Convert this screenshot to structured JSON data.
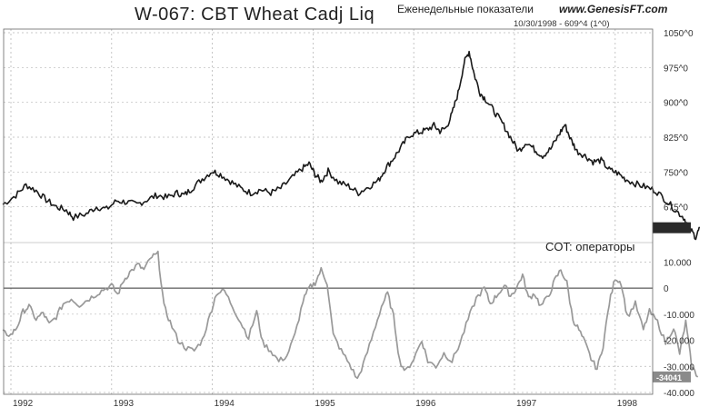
{
  "title": "W-067: CBT Wheat Cadj Liq",
  "subtitle_ru": "Еженедельные показатели",
  "website": "www.GenesisFT.com",
  "date_info": "10/30/1998 - 609^4 (1^0)",
  "colors": {
    "price_line": "#1a1a1a",
    "cot_line": "#999999",
    "grid": "#b8b8b8",
    "zero_line": "#333333",
    "badge_bg": "#2a2a2a",
    "badge_bg2": "#8a8a8a"
  },
  "chart_data": [
    {
      "panel": "price",
      "type": "line",
      "title": "W-067: CBT Wheat Cadj Liq",
      "x": [
        "1992",
        "1993",
        "1994",
        "1995",
        "1996",
        "1997",
        "1998"
      ],
      "ylim": [
        600,
        1050
      ],
      "y_ticks": [
        {
          "v": 1050,
          "label": "1050^0"
        },
        {
          "v": 975,
          "label": "975^0"
        },
        {
          "v": 900,
          "label": "900^0"
        },
        {
          "v": 825,
          "label": "825^0"
        },
        {
          "v": 750,
          "label": "750^0"
        },
        {
          "v": 675,
          "label": "675^0"
        }
      ],
      "series": [
        {
          "values": [
            [
              1991.92,
              680
            ],
            [
              1992.05,
              700
            ],
            [
              1992.15,
              722
            ],
            [
              1992.25,
              710
            ],
            [
              1992.35,
              690
            ],
            [
              1992.45,
              675
            ],
            [
              1992.55,
              668
            ],
            [
              1992.62,
              652
            ],
            [
              1992.75,
              660
            ],
            [
              1992.85,
              675
            ],
            [
              1992.95,
              670
            ],
            [
              1993.05,
              688
            ],
            [
              1993.15,
              685
            ],
            [
              1993.25,
              680
            ],
            [
              1993.35,
              690
            ],
            [
              1993.45,
              700
            ],
            [
              1993.55,
              695
            ],
            [
              1993.65,
              705
            ],
            [
              1993.72,
              700
            ],
            [
              1993.8,
              715
            ],
            [
              1993.9,
              735
            ],
            [
              1994.0,
              752
            ],
            [
              1994.08,
              745
            ],
            [
              1994.18,
              730
            ],
            [
              1994.28,
              715
            ],
            [
              1994.38,
              705
            ],
            [
              1994.48,
              712
            ],
            [
              1994.58,
              705
            ],
            [
              1994.68,
              715
            ],
            [
              1994.78,
              735
            ],
            [
              1994.88,
              755
            ],
            [
              1994.96,
              768
            ],
            [
              1995.02,
              745
            ],
            [
              1995.08,
              730
            ],
            [
              1995.15,
              752
            ],
            [
              1995.25,
              728
            ],
            [
              1995.35,
              720
            ],
            [
              1995.45,
              705
            ],
            [
              1995.55,
              718
            ],
            [
              1995.65,
              732
            ],
            [
              1995.72,
              758
            ],
            [
              1995.8,
              780
            ],
            [
              1995.88,
              805
            ],
            [
              1995.96,
              830
            ],
            [
              1996.05,
              835
            ],
            [
              1996.12,
              840
            ],
            [
              1996.2,
              850
            ],
            [
              1996.26,
              838
            ],
            [
              1996.32,
              845
            ],
            [
              1996.38,
              875
            ],
            [
              1996.44,
              920
            ],
            [
              1996.5,
              985
            ],
            [
              1996.55,
              1010
            ],
            [
              1996.6,
              960
            ],
            [
              1996.66,
              920
            ],
            [
              1996.72,
              905
            ],
            [
              1996.8,
              880
            ],
            [
              1996.88,
              855
            ],
            [
              1996.96,
              825
            ],
            [
              1997.04,
              795
            ],
            [
              1997.12,
              815
            ],
            [
              1997.2,
              798
            ],
            [
              1997.28,
              785
            ],
            [
              1997.36,
              800
            ],
            [
              1997.44,
              830
            ],
            [
              1997.5,
              852
            ],
            [
              1997.56,
              820
            ],
            [
              1997.62,
              795
            ],
            [
              1997.7,
              785
            ],
            [
              1997.78,
              772
            ],
            [
              1997.86,
              775
            ],
            [
              1997.94,
              755
            ],
            [
              1998.02,
              748
            ],
            [
              1998.1,
              735
            ],
            [
              1998.2,
              725
            ],
            [
              1998.3,
              718
            ],
            [
              1998.4,
              710
            ],
            [
              1998.5,
              690
            ],
            [
              1998.6,
              668
            ],
            [
              1998.68,
              652
            ],
            [
              1998.74,
              628
            ],
            [
              1998.8,
              610
            ],
            [
              1998.84,
              630
            ]
          ]
        }
      ]
    },
    {
      "panel": "cot",
      "type": "line",
      "title": "COT: операторы",
      "x": [
        "1992",
        "1993",
        "1994",
        "1995",
        "1996",
        "1997",
        "1998"
      ],
      "ylim": [
        -40000,
        15000
      ],
      "y_ticks": [
        {
          "v": 10000,
          "label": "10.000"
        },
        {
          "v": 0,
          "label": "0"
        },
        {
          "v": -10000,
          "label": "-10.000"
        },
        {
          "v": -20000,
          "label": "-20.000"
        },
        {
          "v": -30000,
          "label": "-30.000"
        },
        {
          "v": -40000,
          "label": "-40.000"
        }
      ],
      "zero_line": 0,
      "last_value": "-34041",
      "series": [
        {
          "values": [
            [
              1991.92,
              -17000
            ],
            [
              1992.0,
              -18000
            ],
            [
              1992.06,
              -15000
            ],
            [
              1992.12,
              -9000
            ],
            [
              1992.18,
              -7000
            ],
            [
              1992.25,
              -12000
            ],
            [
              1992.32,
              -9500
            ],
            [
              1992.38,
              -14000
            ],
            [
              1992.45,
              -11000
            ],
            [
              1992.52,
              -6000
            ],
            [
              1992.6,
              -4000
            ],
            [
              1992.68,
              -6500
            ],
            [
              1992.76,
              -4500
            ],
            [
              1992.84,
              -2500
            ],
            [
              1992.92,
              -500
            ],
            [
              1993.0,
              1000
            ],
            [
              1993.06,
              -2500
            ],
            [
              1993.12,
              3000
            ],
            [
              1993.18,
              6000
            ],
            [
              1993.26,
              9000
            ],
            [
              1993.32,
              7000
            ],
            [
              1993.4,
              12000
            ],
            [
              1993.46,
              13000
            ],
            [
              1993.52,
              -7000
            ],
            [
              1993.58,
              -13000
            ],
            [
              1993.66,
              -20000
            ],
            [
              1993.74,
              -23000
            ],
            [
              1993.82,
              -24000
            ],
            [
              1993.9,
              -20000
            ],
            [
              1993.98,
              -10000
            ],
            [
              1994.04,
              -2000
            ],
            [
              1994.12,
              -1000
            ],
            [
              1994.2,
              -7000
            ],
            [
              1994.28,
              -13000
            ],
            [
              1994.36,
              -19000
            ],
            [
              1994.44,
              -9000
            ],
            [
              1994.5,
              -21000
            ],
            [
              1994.58,
              -24000
            ],
            [
              1994.66,
              -28000
            ],
            [
              1994.74,
              -26000
            ],
            [
              1994.82,
              -18000
            ],
            [
              1994.9,
              -5000
            ],
            [
              1994.96,
              0
            ],
            [
              1995.02,
              2000
            ],
            [
              1995.08,
              7000
            ],
            [
              1995.14,
              2000
            ],
            [
              1995.2,
              -18000
            ],
            [
              1995.28,
              -24000
            ],
            [
              1995.36,
              -29000
            ],
            [
              1995.44,
              -35000
            ],
            [
              1995.52,
              -27000
            ],
            [
              1995.6,
              -17000
            ],
            [
              1995.68,
              -7000
            ],
            [
              1995.74,
              -2000
            ],
            [
              1995.8,
              -11000
            ],
            [
              1995.86,
              -28000
            ],
            [
              1995.92,
              -32000
            ],
            [
              1996.0,
              -27000
            ],
            [
              1996.08,
              -20000
            ],
            [
              1996.14,
              -28000
            ],
            [
              1996.22,
              -30000
            ],
            [
              1996.3,
              -25000
            ],
            [
              1996.38,
              -28000
            ],
            [
              1996.46,
              -21000
            ],
            [
              1996.54,
              -12000
            ],
            [
              1996.62,
              -4000
            ],
            [
              1996.7,
              0
            ],
            [
              1996.76,
              -6000
            ],
            [
              1996.82,
              -3000
            ],
            [
              1996.9,
              1000
            ],
            [
              1996.96,
              -3000
            ],
            [
              1997.02,
              0
            ],
            [
              1997.08,
              5000
            ],
            [
              1997.14,
              -4000
            ],
            [
              1997.2,
              -2000
            ],
            [
              1997.26,
              -7000
            ],
            [
              1997.34,
              -3000
            ],
            [
              1997.4,
              3000
            ],
            [
              1997.46,
              7000
            ],
            [
              1997.52,
              2000
            ],
            [
              1997.58,
              -12000
            ],
            [
              1997.64,
              -16000
            ],
            [
              1997.7,
              -21000
            ],
            [
              1997.76,
              -27000
            ],
            [
              1997.82,
              -31000
            ],
            [
              1997.88,
              -22000
            ],
            [
              1997.94,
              -6000
            ],
            [
              1998.0,
              4000
            ],
            [
              1998.06,
              2000
            ],
            [
              1998.12,
              -11000
            ],
            [
              1998.2,
              -6000
            ],
            [
              1998.28,
              -16000
            ],
            [
              1998.34,
              -9000
            ],
            [
              1998.42,
              -13000
            ],
            [
              1998.5,
              -21000
            ],
            [
              1998.58,
              -15000
            ],
            [
              1998.64,
              -25000
            ],
            [
              1998.7,
              -13000
            ],
            [
              1998.76,
              -30000
            ],
            [
              1998.82,
              -34041
            ]
          ]
        }
      ]
    }
  ]
}
